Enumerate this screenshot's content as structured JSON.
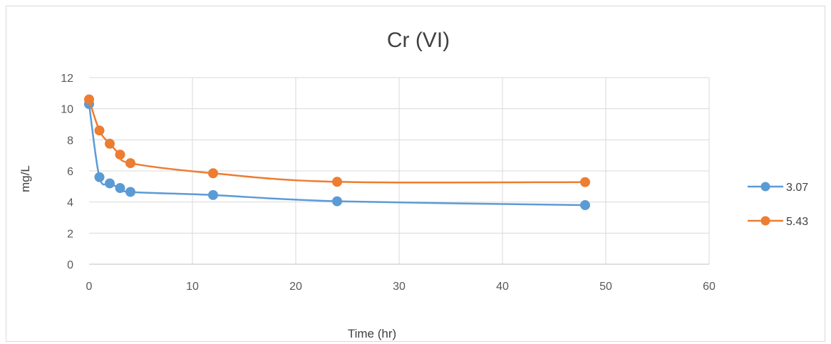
{
  "chart_data": {
    "type": "line",
    "title": "Cr (VI)",
    "xlabel": "Time (hr)",
    "ylabel": "mg/L",
    "xlim": [
      0,
      60
    ],
    "ylim": [
      0,
      12
    ],
    "x_ticks": [
      "0",
      "10",
      "20",
      "30",
      "40",
      "50",
      "60"
    ],
    "y_ticks": [
      "0",
      "2",
      "4",
      "6",
      "8",
      "10",
      "12"
    ],
    "grid": true,
    "smooth": true,
    "legend_position": "right",
    "x": [
      0,
      1,
      2,
      3,
      4,
      12,
      24,
      48
    ],
    "series": [
      {
        "name": "3.07",
        "color": "#5b9bd5",
        "values": [
          10.3,
          5.6,
          5.2,
          4.9,
          4.65,
          4.45,
          4.05,
          3.8
        ]
      },
      {
        "name": "5.43",
        "color": "#ed7d31",
        "values": [
          10.6,
          8.6,
          7.75,
          7.05,
          6.5,
          5.85,
          5.3,
          5.28
        ]
      }
    ]
  }
}
